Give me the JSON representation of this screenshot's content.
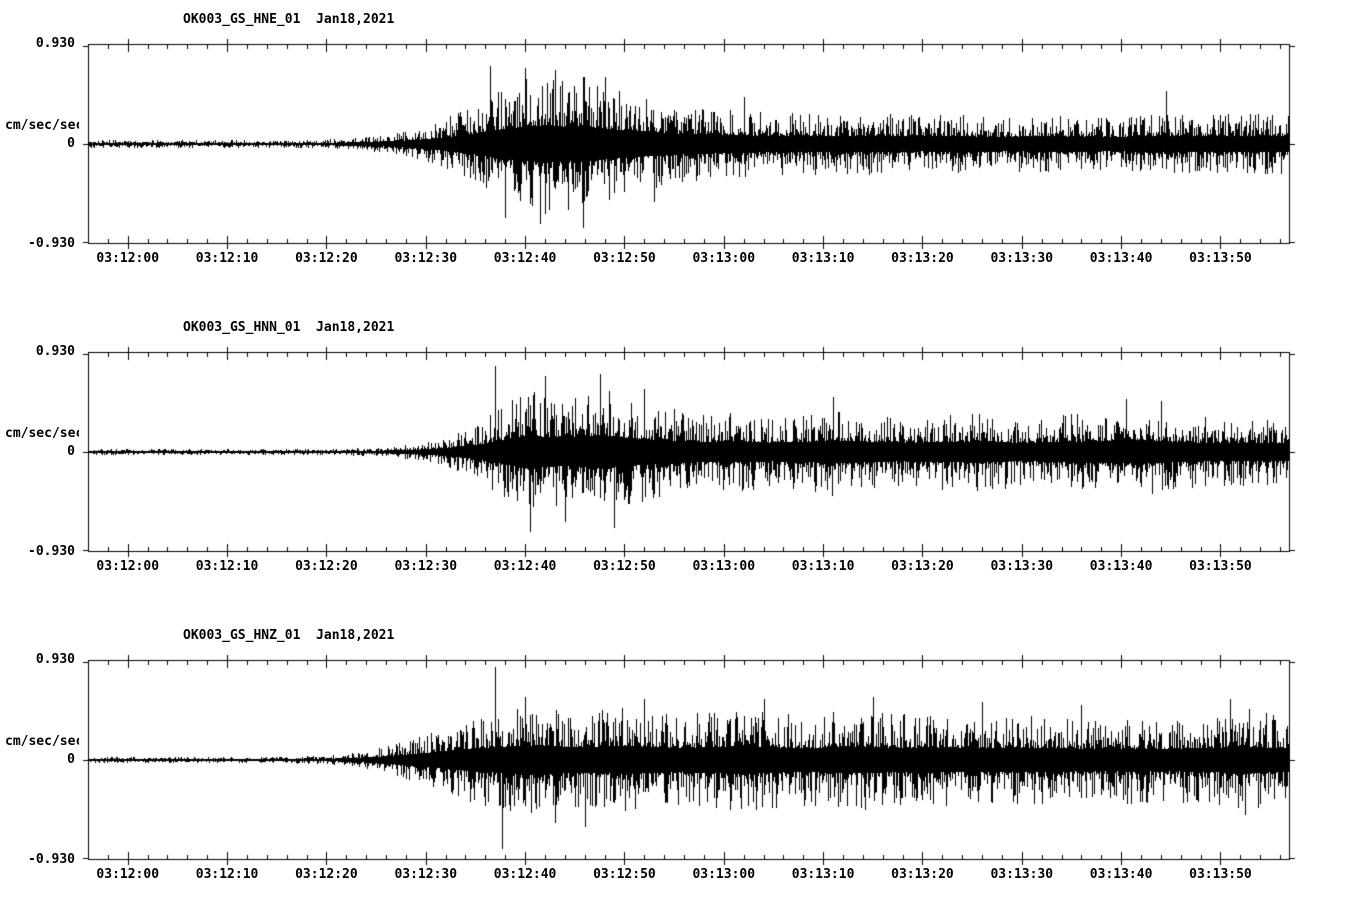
{
  "page": {
    "background": "#ffffff",
    "foreground": "#000000"
  },
  "chart_data": [
    {
      "type": "line",
      "chart_kind": "seismogram-waveform",
      "title": "OK003_GS_HNE_01  Jan18,2021",
      "channel": "HNE",
      "ylabel": "cm/sec/sec",
      "ylim": [
        -0.93,
        0.93
      ],
      "ytick_labels": [
        "0.930",
        "0",
        "-0.930"
      ],
      "x_span_seconds": 121,
      "minor_tick_seconds": 2,
      "x_ticks": [
        {
          "t": 4,
          "label": "03:12:00"
        },
        {
          "t": 14,
          "label": "03:12:10"
        },
        {
          "t": 24,
          "label": "03:12:20"
        },
        {
          "t": 34,
          "label": "03:12:30"
        },
        {
          "t": 44,
          "label": "03:12:40"
        },
        {
          "t": 54,
          "label": "03:12:50"
        },
        {
          "t": 64,
          "label": "03:13:00"
        },
        {
          "t": 74,
          "label": "03:13:10"
        },
        {
          "t": 84,
          "label": "03:13:20"
        },
        {
          "t": 94,
          "label": "03:13:30"
        },
        {
          "t": 104,
          "label": "03:13:40"
        },
        {
          "t": 114,
          "label": "03:13:50"
        }
      ],
      "envelope": [
        [
          0,
          0.045
        ],
        [
          8,
          0.04
        ],
        [
          16,
          0.038
        ],
        [
          22,
          0.04
        ],
        [
          26,
          0.055
        ],
        [
          29,
          0.08
        ],
        [
          32,
          0.12
        ],
        [
          35,
          0.2
        ],
        [
          38,
          0.33
        ],
        [
          41,
          0.5
        ],
        [
          44,
          0.62
        ],
        [
          46,
          0.68
        ],
        [
          48,
          0.62
        ],
        [
          50,
          0.66
        ],
        [
          52,
          0.55
        ],
        [
          55,
          0.48
        ],
        [
          58,
          0.4
        ],
        [
          61,
          0.36
        ],
        [
          64,
          0.33
        ],
        [
          68,
          0.3
        ],
        [
          72,
          0.3
        ],
        [
          76,
          0.28
        ],
        [
          80,
          0.3
        ],
        [
          84,
          0.27
        ],
        [
          88,
          0.28
        ],
        [
          92,
          0.26
        ],
        [
          96,
          0.28
        ],
        [
          100,
          0.27
        ],
        [
          104,
          0.26
        ],
        [
          108,
          0.3
        ],
        [
          112,
          0.27
        ],
        [
          116,
          0.3
        ],
        [
          121,
          0.28
        ]
      ],
      "spikes": [
        [
          40.5,
          0.74
        ],
        [
          42,
          -0.7
        ],
        [
          44,
          0.72
        ],
        [
          45.5,
          -0.76
        ],
        [
          47,
          0.7
        ],
        [
          49.8,
          -0.8
        ],
        [
          52,
          0.64
        ],
        [
          57,
          -0.55
        ],
        [
          66,
          0.45
        ],
        [
          108.5,
          0.5
        ]
      ],
      "noise_seed": 101
    },
    {
      "type": "line",
      "chart_kind": "seismogram-waveform",
      "title": "OK003_GS_HNN_01  Jan18,2021",
      "channel": "HNN",
      "ylabel": "cm/sec/sec",
      "ylim": [
        -0.93,
        0.93
      ],
      "ytick_labels": [
        "0.930",
        "0",
        "-0.930"
      ],
      "x_span_seconds": 121,
      "minor_tick_seconds": 2,
      "x_ticks": [
        {
          "t": 4,
          "label": "03:12:00"
        },
        {
          "t": 14,
          "label": "03:12:10"
        },
        {
          "t": 24,
          "label": "03:12:20"
        },
        {
          "t": 34,
          "label": "03:12:30"
        },
        {
          "t": 44,
          "label": "03:12:40"
        },
        {
          "t": 54,
          "label": "03:12:50"
        },
        {
          "t": 64,
          "label": "03:13:00"
        },
        {
          "t": 74,
          "label": "03:13:10"
        },
        {
          "t": 84,
          "label": "03:13:20"
        },
        {
          "t": 94,
          "label": "03:13:30"
        },
        {
          "t": 104,
          "label": "03:13:40"
        },
        {
          "t": 114,
          "label": "03:13:50"
        }
      ],
      "envelope": [
        [
          0,
          0.03
        ],
        [
          10,
          0.027
        ],
        [
          20,
          0.028
        ],
        [
          26,
          0.032
        ],
        [
          30,
          0.05
        ],
        [
          33,
          0.08
        ],
        [
          36,
          0.14
        ],
        [
          39,
          0.25
        ],
        [
          42,
          0.45
        ],
        [
          44,
          0.6
        ],
        [
          46,
          0.55
        ],
        [
          48,
          0.5
        ],
        [
          50,
          0.55
        ],
        [
          52,
          0.6
        ],
        [
          54,
          0.52
        ],
        [
          57,
          0.45
        ],
        [
          60,
          0.4
        ],
        [
          63,
          0.36
        ],
        [
          66,
          0.38
        ],
        [
          69,
          0.34
        ],
        [
          72,
          0.36
        ],
        [
          75,
          0.42
        ],
        [
          78,
          0.36
        ],
        [
          82,
          0.34
        ],
        [
          86,
          0.36
        ],
        [
          90,
          0.38
        ],
        [
          94,
          0.33
        ],
        [
          98,
          0.36
        ],
        [
          102,
          0.4
        ],
        [
          106,
          0.42
        ],
        [
          109,
          0.38
        ],
        [
          112,
          0.34
        ],
        [
          116,
          0.33
        ],
        [
          121,
          0.31
        ]
      ],
      "spikes": [
        [
          41,
          0.82
        ],
        [
          44.5,
          -0.76
        ],
        [
          46,
          0.72
        ],
        [
          48,
          -0.66
        ],
        [
          51.5,
          0.74
        ],
        [
          53,
          -0.72
        ],
        [
          56,
          0.6
        ],
        [
          75,
          0.52
        ],
        [
          104.5,
          0.5
        ],
        [
          108,
          0.48
        ]
      ],
      "noise_seed": 202
    },
    {
      "type": "line",
      "chart_kind": "seismogram-waveform",
      "title": "OK003_GS_HNZ_01  Jan18,2021",
      "channel": "HNZ",
      "ylabel": "cm/sec/sec",
      "ylim": [
        -0.93,
        0.93
      ],
      "ytick_labels": [
        "0.930",
        "0",
        "-0.930"
      ],
      "x_span_seconds": 121,
      "minor_tick_seconds": 2,
      "x_ticks": [
        {
          "t": 4,
          "label": "03:12:00"
        },
        {
          "t": 14,
          "label": "03:12:10"
        },
        {
          "t": 24,
          "label": "03:12:20"
        },
        {
          "t": 34,
          "label": "03:12:30"
        },
        {
          "t": 44,
          "label": "03:12:40"
        },
        {
          "t": 54,
          "label": "03:12:50"
        },
        {
          "t": 64,
          "label": "03:13:00"
        },
        {
          "t": 74,
          "label": "03:13:10"
        },
        {
          "t": 84,
          "label": "03:13:20"
        },
        {
          "t": 94,
          "label": "03:13:30"
        },
        {
          "t": 104,
          "label": "03:13:40"
        },
        {
          "t": 114,
          "label": "03:13:50"
        }
      ],
      "envelope": [
        [
          0,
          0.03
        ],
        [
          10,
          0.027
        ],
        [
          18,
          0.028
        ],
        [
          24,
          0.04
        ],
        [
          27,
          0.07
        ],
        [
          30,
          0.13
        ],
        [
          33,
          0.22
        ],
        [
          36,
          0.33
        ],
        [
          39,
          0.42
        ],
        [
          42,
          0.48
        ],
        [
          45,
          0.52
        ],
        [
          48,
          0.46
        ],
        [
          51,
          0.48
        ],
        [
          54,
          0.5
        ],
        [
          57,
          0.46
        ],
        [
          60,
          0.44
        ],
        [
          63,
          0.48
        ],
        [
          66,
          0.5
        ],
        [
          69,
          0.46
        ],
        [
          72,
          0.44
        ],
        [
          75,
          0.46
        ],
        [
          78,
          0.48
        ],
        [
          81,
          0.44
        ],
        [
          84,
          0.46
        ],
        [
          87,
          0.44
        ],
        [
          90,
          0.44
        ],
        [
          93,
          0.42
        ],
        [
          96,
          0.44
        ],
        [
          99,
          0.42
        ],
        [
          102,
          0.4
        ],
        [
          105,
          0.42
        ],
        [
          108,
          0.4
        ],
        [
          111,
          0.42
        ],
        [
          114,
          0.44
        ],
        [
          116,
          0.52
        ],
        [
          118,
          0.46
        ],
        [
          121,
          0.42
        ]
      ],
      "spikes": [
        [
          41,
          0.88
        ],
        [
          41.7,
          -0.84
        ],
        [
          44,
          0.6
        ],
        [
          47,
          -0.6
        ],
        [
          50,
          -0.64
        ],
        [
          56,
          0.58
        ],
        [
          68,
          0.58
        ],
        [
          79,
          0.6
        ],
        [
          90,
          0.55
        ],
        [
          100,
          0.52
        ],
        [
          115,
          0.58
        ],
        [
          116.5,
          -0.52
        ]
      ],
      "noise_seed": 303
    }
  ]
}
